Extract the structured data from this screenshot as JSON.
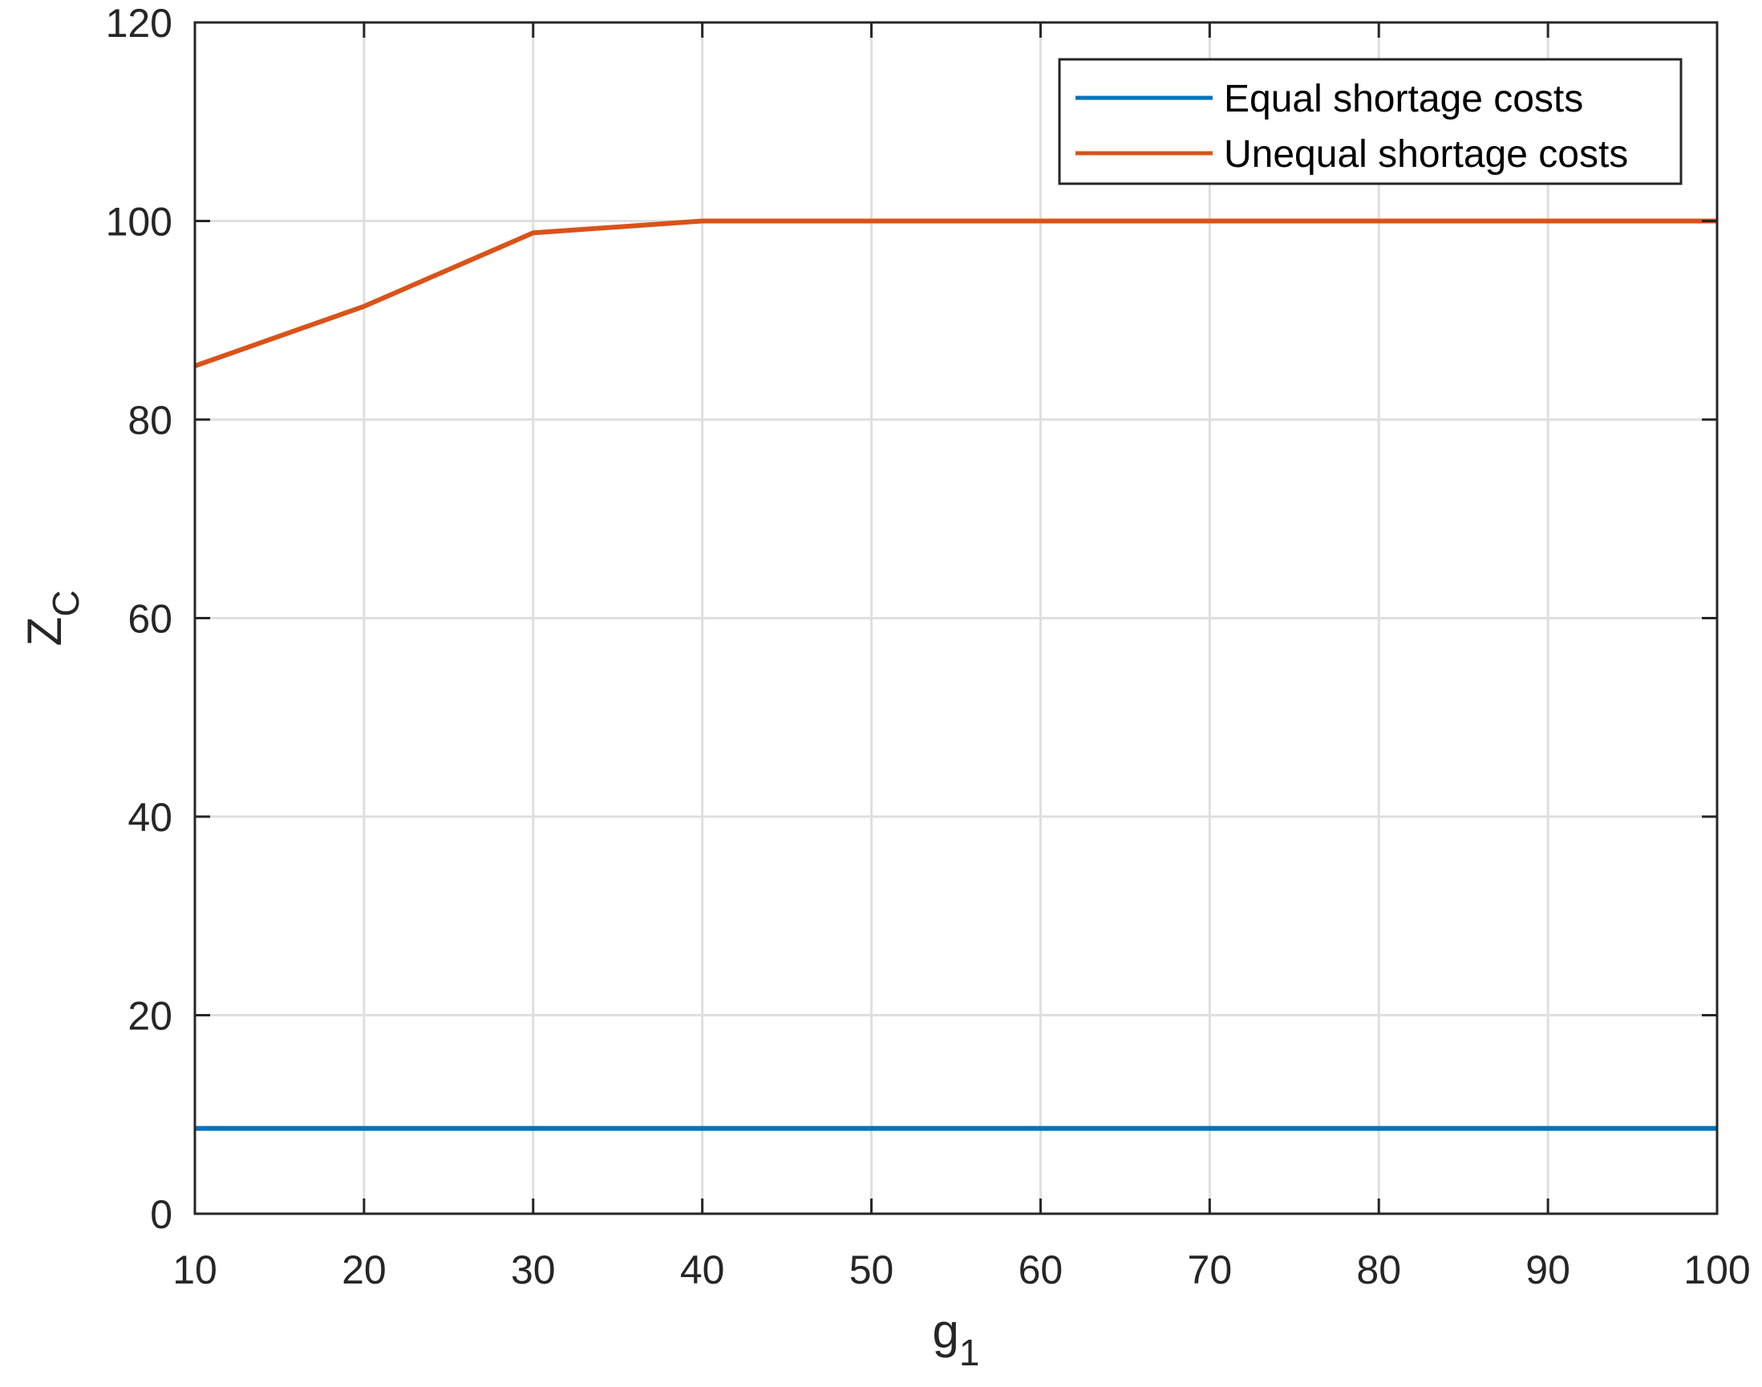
{
  "chart_data": {
    "type": "line",
    "xlabel": {
      "main": "g",
      "sub": "1"
    },
    "ylabel": {
      "main": "Z",
      "sub": "C"
    },
    "xlim": [
      10,
      100
    ],
    "ylim": [
      0,
      120
    ],
    "xticks": [
      10,
      20,
      30,
      40,
      50,
      60,
      70,
      80,
      90,
      100
    ],
    "yticks": [
      0,
      20,
      40,
      60,
      80,
      100,
      120
    ],
    "xtick_labels": [
      "10",
      "20",
      "30",
      "40",
      "50",
      "60",
      "70",
      "80",
      "90",
      "100"
    ],
    "ytick_labels": [
      "0",
      "20",
      "40",
      "60",
      "80",
      "100",
      "120"
    ],
    "grid": true,
    "legend_position": "top-right",
    "x": [
      10,
      20,
      30,
      40,
      50,
      60,
      70,
      80,
      90,
      100
    ],
    "series": [
      {
        "name": "Equal shortage costs",
        "color": "#0072BD",
        "values": [
          8.6,
          8.6,
          8.6,
          8.6,
          8.6,
          8.6,
          8.6,
          8.6,
          8.6,
          8.6
        ]
      },
      {
        "name": "Unequal shortage costs",
        "color": "#D95319",
        "values": [
          85.4,
          91.4,
          98.8,
          100,
          100,
          100,
          100,
          100,
          100,
          100
        ]
      }
    ]
  }
}
